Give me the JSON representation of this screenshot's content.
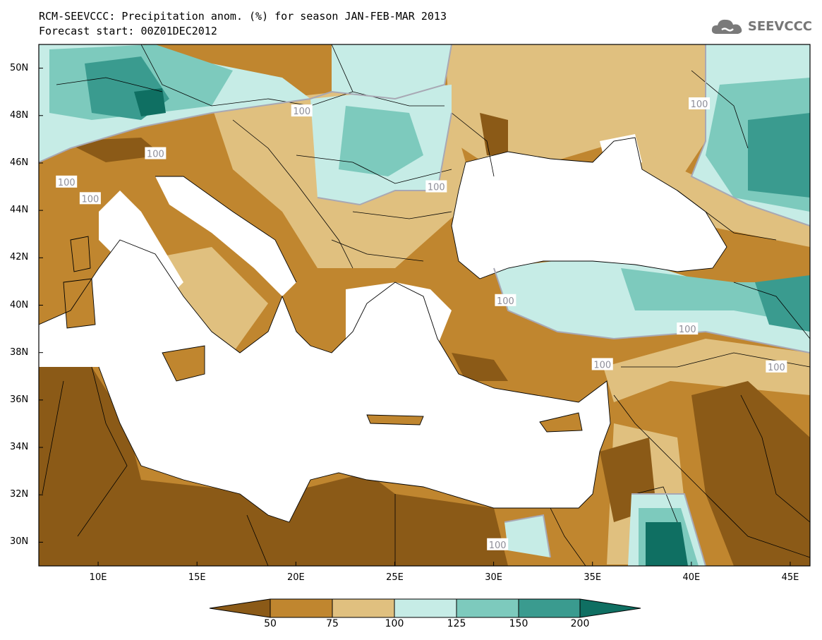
{
  "title": {
    "line1": "RCM-SEEVCCC: Precipitation anom. (%) for season JAN-FEB-MAR 2013",
    "line2": "Forecast start: 00Z01DEC2012"
  },
  "logo": {
    "text": "SEEVCCC",
    "icon": "cloud-logo-icon",
    "color": "#7a7a7a"
  },
  "map": {
    "lon_range": [
      7,
      46
    ],
    "lat_range": [
      29,
      51
    ],
    "x_ticks": [
      "10E",
      "15E",
      "20E",
      "25E",
      "30E",
      "35E",
      "40E",
      "45E"
    ],
    "x_tick_values": [
      10,
      15,
      20,
      25,
      30,
      35,
      40,
      45
    ],
    "y_ticks": [
      "50N",
      "48N",
      "46N",
      "44N",
      "42N",
      "40N",
      "38N",
      "36N",
      "34N",
      "32N",
      "30N"
    ],
    "y_tick_values": [
      50,
      48,
      46,
      44,
      42,
      40,
      38,
      36,
      34,
      32,
      30
    ],
    "contour_labels": [
      {
        "text": "100",
        "lon": 12.9,
        "lat": 46.4
      },
      {
        "text": "100",
        "lon": 8.4,
        "lat": 45.2
      },
      {
        "text": "100",
        "lon": 9.6,
        "lat": 44.5
      },
      {
        "text": "100",
        "lon": 20.3,
        "lat": 48.2
      },
      {
        "text": "100",
        "lon": 27.1,
        "lat": 45.0
      },
      {
        "text": "100",
        "lon": 40.4,
        "lat": 48.5
      },
      {
        "text": "100",
        "lon": 30.6,
        "lat": 40.2
      },
      {
        "text": "100",
        "lon": 39.8,
        "lat": 39.0
      },
      {
        "text": "100",
        "lon": 35.5,
        "lat": 37.5
      },
      {
        "text": "100",
        "lon": 44.3,
        "lat": 37.4
      },
      {
        "text": "100",
        "lon": 30.2,
        "lat": 29.9
      }
    ]
  },
  "colorbar": {
    "labels": [
      "50",
      "75",
      "100",
      "125",
      "150",
      "200"
    ],
    "colors": [
      "#8b5a17",
      "#c0862f",
      "#e0c07f",
      "#c6ece6",
      "#7dcabd",
      "#3a9b8f",
      "#0f6f62"
    ]
  }
}
